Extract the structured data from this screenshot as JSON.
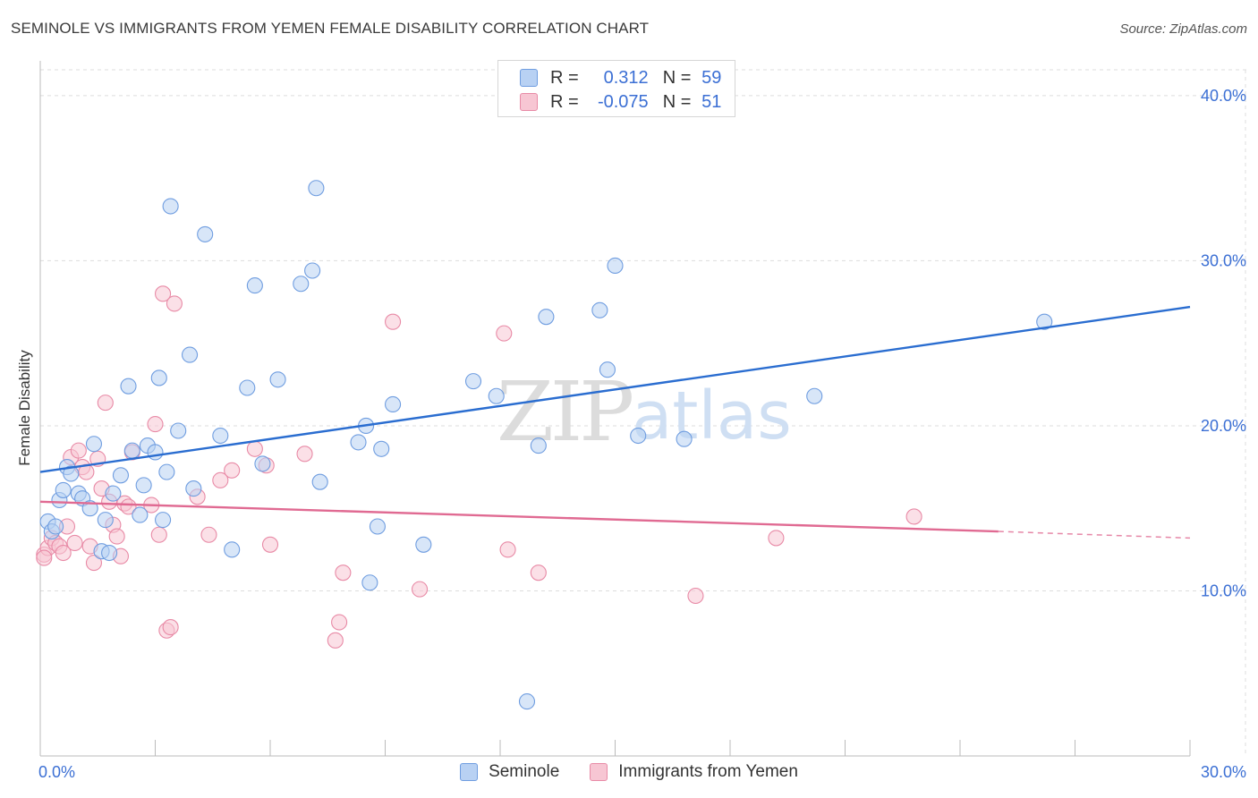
{
  "title": "SEMINOLE VS IMMIGRANTS FROM YEMEN FEMALE DISABILITY CORRELATION CHART",
  "source": "Source: ZipAtlas.com",
  "watermark": {
    "zip": "ZIP",
    "atlas": "atlas"
  },
  "colors": {
    "blue_fill": "#b8d1f3",
    "blue_stroke": "#6f9de0",
    "blue_line": "#2a6dd0",
    "pink_fill": "#f7c6d3",
    "pink_stroke": "#e88aa6",
    "pink_line": "#e06a92",
    "axis_text": "#3b6fd4",
    "grid": "#dddddd"
  },
  "legend": {
    "rows": [
      {
        "r_label": "R =",
        "r_value": "0.312",
        "n_label": "N =",
        "n_value": "59",
        "series": "blue"
      },
      {
        "r_label": "R =",
        "r_value": "-0.075",
        "n_label": "N =",
        "n_value": "51",
        "series": "pink"
      }
    ]
  },
  "chart_data": {
    "type": "scatter",
    "title": "SEMINOLE VS IMMIGRANTS FROM YEMEN FEMALE DISABILITY CORRELATION CHART",
    "xlabel": "",
    "ylabel": "Female Disability",
    "xlim": [
      0,
      30
    ],
    "ylim": [
      0,
      42
    ],
    "x_tick_labels": [
      "0.0%",
      "30.0%"
    ],
    "y_ticks": [
      10,
      20,
      30,
      40
    ],
    "y_tick_labels": [
      "10.0%",
      "20.0%",
      "30.0%",
      "40.0%"
    ],
    "grid": true,
    "series": [
      {
        "name": "Seminole",
        "color": "blue",
        "trend": {
          "x0": 0,
          "y0": 17.2,
          "x1": 30,
          "y1": 27.2
        },
        "points": [
          [
            0.2,
            14.2
          ],
          [
            0.3,
            13.6
          ],
          [
            0.4,
            13.9
          ],
          [
            0.5,
            15.5
          ],
          [
            0.6,
            16.1
          ],
          [
            0.7,
            17.5
          ],
          [
            0.8,
            17.1
          ],
          [
            1.0,
            15.9
          ],
          [
            1.1,
            15.6
          ],
          [
            1.3,
            15.0
          ],
          [
            1.4,
            18.9
          ],
          [
            1.6,
            12.4
          ],
          [
            1.7,
            14.3
          ],
          [
            1.8,
            12.3
          ],
          [
            1.9,
            15.9
          ],
          [
            2.1,
            17.0
          ],
          [
            2.3,
            22.4
          ],
          [
            2.4,
            18.5
          ],
          [
            2.6,
            14.6
          ],
          [
            2.7,
            16.4
          ],
          [
            2.8,
            18.8
          ],
          [
            3.0,
            18.4
          ],
          [
            3.1,
            22.9
          ],
          [
            3.2,
            14.3
          ],
          [
            3.3,
            17.2
          ],
          [
            3.4,
            33.3
          ],
          [
            3.6,
            19.7
          ],
          [
            3.9,
            24.3
          ],
          [
            4.0,
            16.2
          ],
          [
            4.3,
            31.6
          ],
          [
            4.7,
            19.4
          ],
          [
            5.0,
            12.5
          ],
          [
            5.4,
            22.3
          ],
          [
            5.6,
            28.5
          ],
          [
            5.8,
            17.7
          ],
          [
            6.2,
            22.8
          ],
          [
            6.8,
            28.6
          ],
          [
            7.1,
            29.4
          ],
          [
            7.2,
            34.4
          ],
          [
            7.3,
            16.6
          ],
          [
            8.3,
            19.0
          ],
          [
            8.5,
            20.0
          ],
          [
            8.6,
            10.5
          ],
          [
            8.8,
            13.9
          ],
          [
            8.9,
            18.6
          ],
          [
            9.2,
            21.3
          ],
          [
            10.0,
            12.8
          ],
          [
            11.3,
            22.7
          ],
          [
            11.9,
            21.8
          ],
          [
            12.7,
            3.3
          ],
          [
            13.0,
            18.8
          ],
          [
            13.2,
            26.6
          ],
          [
            14.6,
            27.0
          ],
          [
            14.8,
            23.4
          ],
          [
            15.0,
            29.7
          ],
          [
            15.6,
            19.4
          ],
          [
            16.8,
            19.2
          ],
          [
            20.2,
            21.8
          ],
          [
            26.2,
            26.3
          ]
        ]
      },
      {
        "name": "Immigrants from Yemen",
        "color": "pink",
        "trend": {
          "x0": 0,
          "y0": 15.4,
          "x1": 25,
          "y1": 13.6,
          "dash_to_x": 30,
          "dash_to_y": 13.2
        },
        "points": [
          [
            0.1,
            12.2
          ],
          [
            0.2,
            12.6
          ],
          [
            0.3,
            13.2
          ],
          [
            0.4,
            12.9
          ],
          [
            0.5,
            12.7
          ],
          [
            0.6,
            12.3
          ],
          [
            0.7,
            13.9
          ],
          [
            0.8,
            18.1
          ],
          [
            0.9,
            12.9
          ],
          [
            1.0,
            18.5
          ],
          [
            1.1,
            17.5
          ],
          [
            1.2,
            17.2
          ],
          [
            1.3,
            12.7
          ],
          [
            1.4,
            11.7
          ],
          [
            1.5,
            18.0
          ],
          [
            1.6,
            16.2
          ],
          [
            1.7,
            21.4
          ],
          [
            1.8,
            15.4
          ],
          [
            1.9,
            14.0
          ],
          [
            2.0,
            13.3
          ],
          [
            2.1,
            12.1
          ],
          [
            2.2,
            15.3
          ],
          [
            2.3,
            15.1
          ],
          [
            2.4,
            18.4
          ],
          [
            2.9,
            15.2
          ],
          [
            3.0,
            20.1
          ],
          [
            3.1,
            13.4
          ],
          [
            3.2,
            28.0
          ],
          [
            3.3,
            7.6
          ],
          [
            3.4,
            7.8
          ],
          [
            3.5,
            27.4
          ],
          [
            4.1,
            15.7
          ],
          [
            4.4,
            13.4
          ],
          [
            4.7,
            16.7
          ],
          [
            5.0,
            17.3
          ],
          [
            5.6,
            18.6
          ],
          [
            5.9,
            17.6
          ],
          [
            6.0,
            12.8
          ],
          [
            6.9,
            18.3
          ],
          [
            7.7,
            7.0
          ],
          [
            7.8,
            8.1
          ],
          [
            7.9,
            11.1
          ],
          [
            9.2,
            26.3
          ],
          [
            9.9,
            10.1
          ],
          [
            12.1,
            25.6
          ],
          [
            12.2,
            12.5
          ],
          [
            13.0,
            11.1
          ],
          [
            17.1,
            9.7
          ],
          [
            19.2,
            13.2
          ],
          [
            22.8,
            14.5
          ],
          [
            0.1,
            12.0
          ]
        ]
      }
    ]
  },
  "bottom_legend": {
    "items": [
      "Seminole",
      "Immigrants from Yemen"
    ]
  }
}
